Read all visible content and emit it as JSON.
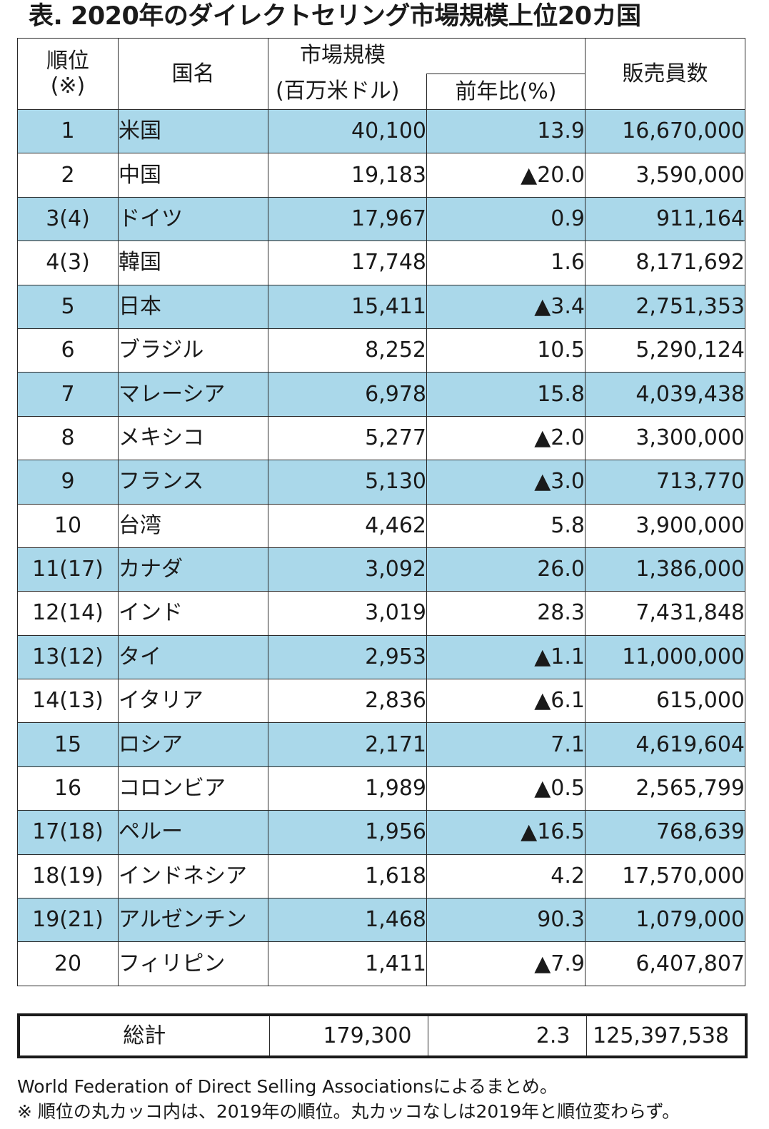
{
  "title": "表. 2020年のダイレクトセリング市場規模上位20カ国",
  "headers": {
    "rank_line1": "順位",
    "rank_line2": "(※)",
    "country": "国名",
    "market_line1": "市場規模",
    "market_line2": "(百万米ドル)",
    "yoy": "前年比(%)",
    "sellers": "販売員数"
  },
  "rows": [
    {
      "rank": "1",
      "country": "米国",
      "market": "40,100",
      "yoy": "13.9",
      "sellers": "16,670,000"
    },
    {
      "rank": "2",
      "country": "中国",
      "market": "19,183",
      "yoy": "▲20.0",
      "sellers": "3,590,000"
    },
    {
      "rank": "3(4)",
      "country": "ドイツ",
      "market": "17,967",
      "yoy": "0.9",
      "sellers": "911,164"
    },
    {
      "rank": "4(3)",
      "country": "韓国",
      "market": "17,748",
      "yoy": "1.6",
      "sellers": "8,171,692"
    },
    {
      "rank": "5",
      "country": "日本",
      "market": "15,411",
      "yoy": "▲3.4",
      "sellers": "2,751,353"
    },
    {
      "rank": "6",
      "country": "ブラジル",
      "market": "8,252",
      "yoy": "10.5",
      "sellers": "5,290,124"
    },
    {
      "rank": "7",
      "country": "マレーシア",
      "market": "6,978",
      "yoy": "15.8",
      "sellers": "4,039,438"
    },
    {
      "rank": "8",
      "country": "メキシコ",
      "market": "5,277",
      "yoy": "▲2.0",
      "sellers": "3,300,000"
    },
    {
      "rank": "9",
      "country": "フランス",
      "market": "5,130",
      "yoy": "▲3.0",
      "sellers": "713,770"
    },
    {
      "rank": "10",
      "country": "台湾",
      "market": "4,462",
      "yoy": "5.8",
      "sellers": "3,900,000"
    },
    {
      "rank": "11(17)",
      "country": "カナダ",
      "market": "3,092",
      "yoy": "26.0",
      "sellers": "1,386,000"
    },
    {
      "rank": "12(14)",
      "country": "インド",
      "market": "3,019",
      "yoy": "28.3",
      "sellers": "7,431,848"
    },
    {
      "rank": "13(12)",
      "country": "タイ",
      "market": "2,953",
      "yoy": "▲1.1",
      "sellers": "11,000,000"
    },
    {
      "rank": "14(13)",
      "country": "イタリア",
      "market": "2,836",
      "yoy": "▲6.1",
      "sellers": "615,000"
    },
    {
      "rank": "15",
      "country": "ロシア",
      "market": "2,171",
      "yoy": "7.1",
      "sellers": "4,619,604"
    },
    {
      "rank": "16",
      "country": "コロンビア",
      "market": "1,989",
      "yoy": "▲0.5",
      "sellers": "2,565,799"
    },
    {
      "rank": "17(18)",
      "country": "ペルー",
      "market": "1,956",
      "yoy": "▲16.5",
      "sellers": "768,639"
    },
    {
      "rank": "18(19)",
      "country": "インドネシア",
      "market": "1,618",
      "yoy": "4.2",
      "sellers": "17,570,000"
    },
    {
      "rank": "19(21)",
      "country": "アルゼンチン",
      "market": "1,468",
      "yoy": "90.3",
      "sellers": "1,079,000"
    },
    {
      "rank": "20",
      "country": "フィリピン",
      "market": "1,411",
      "yoy": "▲7.9",
      "sellers": "6,407,807"
    }
  ],
  "total": {
    "label": "総計",
    "market": "179,300",
    "yoy": "2.3",
    "sellers": "125,397,538"
  },
  "notes": [
    "World Federation of Direct Selling Associationsによるまとめ。",
    "※ 順位の丸カッコ内は、2019年の順位。丸カッコなしは2019年と順位変わらず。"
  ],
  "colors": {
    "shade": "#aad8ea",
    "border": "#2a2a2a"
  }
}
